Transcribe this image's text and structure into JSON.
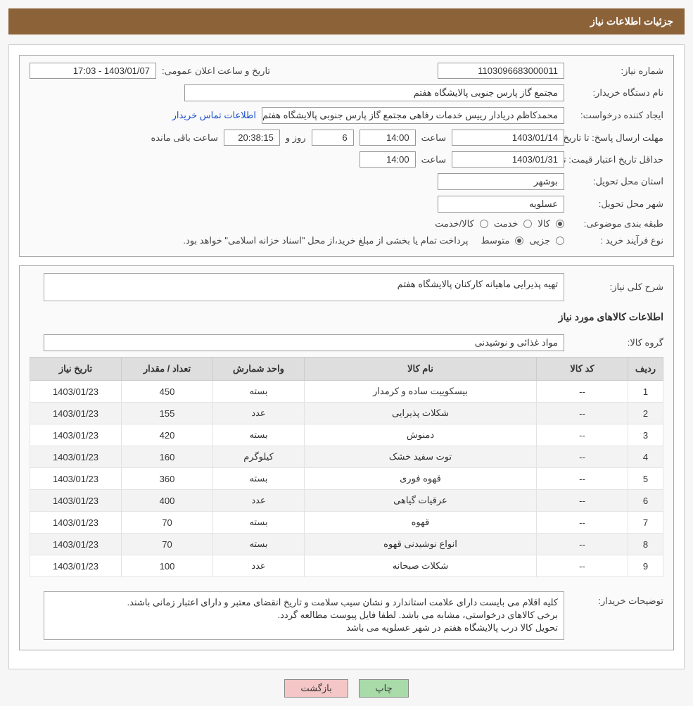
{
  "header": {
    "title": "جزئیات اطلاعات نیاز"
  },
  "fields": {
    "need_number": {
      "label": "شماره نیاز:",
      "value": "1103096683000011"
    },
    "announce_datetime": {
      "label": "تاریخ و ساعت اعلان عمومی:",
      "value": "1403/01/07 - 17:03"
    },
    "buyer_org": {
      "label": "نام دستگاه خریدار:",
      "value": "مجتمع گاز پارس جنوبی  پالایشگاه هفتم"
    },
    "requester": {
      "label": "ایجاد کننده درخواست:",
      "value": "محمدکاظم دریادار رییس خدمات رفاهی مجتمع گاز پارس جنوبی  پالایشگاه هفتم"
    },
    "contact_link": "اطلاعات تماس خریدار",
    "deadline": {
      "label": "مهلت ارسال پاسخ: تا تاریخ:",
      "date": "1403/01/14",
      "time_label": "ساعت",
      "time": "14:00",
      "days": "6",
      "days_label": "روز و",
      "countdown": "20:38:15",
      "countdown_label": "ساعت باقی مانده"
    },
    "validity": {
      "label": "حداقل تاریخ اعتبار قیمت: تا تاریخ:",
      "date": "1403/01/31",
      "time_label": "ساعت",
      "time": "14:00"
    },
    "delivery_province": {
      "label": "استان محل تحویل:",
      "value": "بوشهر"
    },
    "delivery_city": {
      "label": "شهر محل تحویل:",
      "value": "عسلویه"
    },
    "subject_class": {
      "label": "طبقه بندی موضوعی:",
      "opts": [
        "کالا",
        "خدمت",
        "کالا/خدمت"
      ]
    },
    "purchase_type": {
      "label": "نوع فرآیند خرید :",
      "opts": [
        "جزیی",
        "متوسط"
      ],
      "suffix": "پرداخت تمام یا بخشی از مبلغ خرید،از محل \"اسناد خزانه اسلامی\" خواهد بود."
    }
  },
  "section2": {
    "desc_label": "شرح کلی نیاز:",
    "desc_value": "تهیه پذیرایی ماهیانه کارکنان پالایشگاه هفتم",
    "goods_title": "اطلاعات کالاهای مورد نیاز",
    "group_label": "گروه کالا:",
    "group_value": "مواد غذائی و نوشیدنی",
    "notes_label": "توضیحات خریدار:",
    "notes_lines": [
      "کلیه اقلام می بایست دارای علامت استاندارد و نشان سیب سلامت و تاریخ انقضای معتبر و دارای اعتبار زمانی باشند.",
      "برخی کالاهای درخواستی، مشابه می باشد. لطفا فایل پیوست مطالعه گردد.",
      "تحویل کالا درب پالایشگاه هفتم در شهر عسلویه می باشد"
    ]
  },
  "table": {
    "columns": [
      "ردیف",
      "کد کالا",
      "نام کالا",
      "واحد شمارش",
      "تعداد / مقدار",
      "تاریخ نیاز"
    ],
    "rows": [
      [
        "1",
        "--",
        "بیسکوییت ساده و کرمدار",
        "بسته",
        "450",
        "1403/01/23"
      ],
      [
        "2",
        "--",
        "شکلات پذیرایی",
        "عدد",
        "155",
        "1403/01/23"
      ],
      [
        "3",
        "--",
        "دمنوش",
        "بسته",
        "420",
        "1403/01/23"
      ],
      [
        "4",
        "--",
        "توت سفید خشک",
        "کیلوگرم",
        "160",
        "1403/01/23"
      ],
      [
        "5",
        "--",
        "قهوه فوری",
        "بسته",
        "360",
        "1403/01/23"
      ],
      [
        "6",
        "--",
        "عرقیات گیاهی",
        "عدد",
        "400",
        "1403/01/23"
      ],
      [
        "7",
        "--",
        "قهوه",
        "بسته",
        "70",
        "1403/01/23"
      ],
      [
        "8",
        "--",
        "انواع نوشیدنی قهوه",
        "بسته",
        "70",
        "1403/01/23"
      ],
      [
        "9",
        "--",
        "شکلات صبحانه",
        "عدد",
        "100",
        "1403/01/23"
      ]
    ],
    "col_widths": [
      "50px",
      "130px",
      "auto",
      "130px",
      "130px",
      "130px"
    ]
  },
  "buttons": {
    "print": "چاپ",
    "back": "بازگشت"
  }
}
